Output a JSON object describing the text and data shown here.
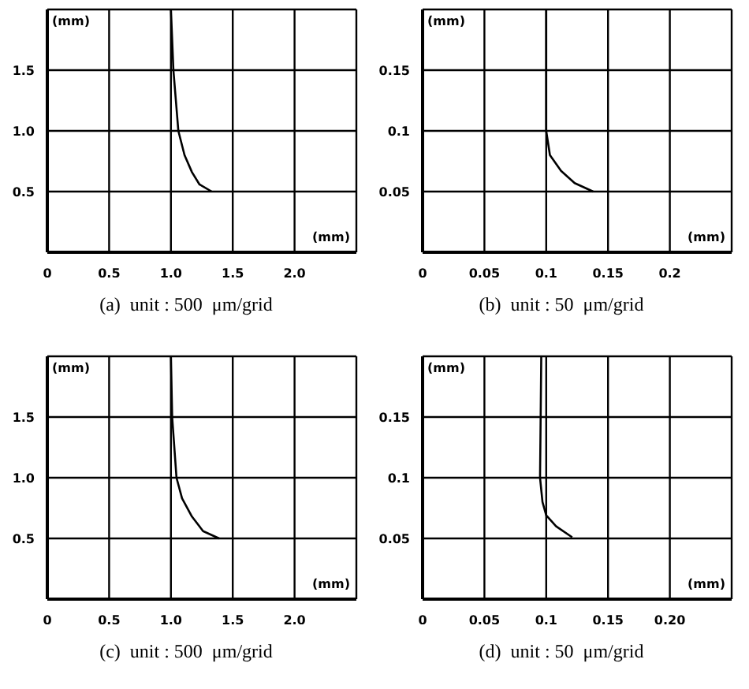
{
  "chart_data": [
    {
      "type": "line",
      "xlabel": "(mm)",
      "ylabel": "(mm)",
      "annotations": [
        "(a)  unit : 500  μm/grid"
      ],
      "xlim": [
        0,
        2.5
      ],
      "ylim": [
        0,
        2
      ],
      "xticks": [
        0,
        0.5,
        {
          "value": 1,
          "label": "1.0"
        },
        1.5,
        {
          "value": 2,
          "label": "2.0"
        }
      ],
      "yticks": [
        0.5,
        {
          "value": 1,
          "label": "1.0"
        },
        1.5
      ],
      "grid": true,
      "series": [
        {
          "color": "#000000",
          "x": [
            1.0,
            1.02,
            1.06,
            1.11,
            1.17,
            1.23,
            1.33
          ],
          "values": [
            2.0,
            1.5,
            1.0,
            0.8,
            0.66,
            0.56,
            0.5
          ]
        }
      ]
    },
    {
      "type": "line",
      "xlabel": "(mm)",
      "ylabel": "(mm)",
      "annotations": [
        "(b)  unit : 50  μm/grid"
      ],
      "xlim": [
        0,
        0.25
      ],
      "ylim": [
        0,
        0.2
      ],
      "xticks": [
        0,
        0.05,
        0.1,
        0.15,
        0.2
      ],
      "yticks": [
        0.05,
        0.1,
        0.15
      ],
      "grid": true,
      "series": [
        {
          "color": "#000000",
          "x": [
            0.1,
            0.1,
            0.103,
            0.112,
            0.123,
            0.138
          ],
          "values": [
            0.2,
            0.1,
            0.08,
            0.067,
            0.057,
            0.05
          ]
        }
      ]
    },
    {
      "type": "line",
      "xlabel": "(mm)",
      "ylabel": "(mm)",
      "annotations": [
        "(c)  unit : 500  μm/grid"
      ],
      "xlim": [
        0,
        2.5
      ],
      "ylim": [
        0,
        2
      ],
      "xticks": [
        0,
        0.5,
        {
          "value": 1,
          "label": "1.0"
        },
        1.5,
        {
          "value": 2,
          "label": "2.0"
        }
      ],
      "yticks": [
        0.5,
        {
          "value": 1,
          "label": "1.0"
        },
        1.5
      ],
      "grid": true,
      "series": [
        {
          "color": "#000000",
          "x": [
            1.0,
            1.01,
            1.045,
            1.09,
            1.17,
            1.26,
            1.39
          ],
          "values": [
            2.0,
            1.5,
            1.0,
            0.83,
            0.68,
            0.56,
            0.5
          ]
        }
      ]
    },
    {
      "type": "line",
      "xlabel": "(mm)",
      "ylabel": "(mm)",
      "annotations": [
        "(d)  unit : 50  μm/grid"
      ],
      "xlim": [
        0,
        0.25
      ],
      "ylim": [
        0,
        0.2
      ],
      "xticks": [
        0,
        0.05,
        0.1,
        0.15,
        {
          "value": 0.2,
          "label": "0.20"
        }
      ],
      "yticks": [
        0.05,
        0.1,
        0.15
      ],
      "grid": true,
      "series": [
        {
          "color": "#000000",
          "x": [
            0.096,
            0.095,
            0.097,
            0.1,
            0.108,
            0.121
          ],
          "values": [
            0.2,
            0.1,
            0.08,
            0.069,
            0.06,
            0.051
          ]
        }
      ]
    }
  ]
}
